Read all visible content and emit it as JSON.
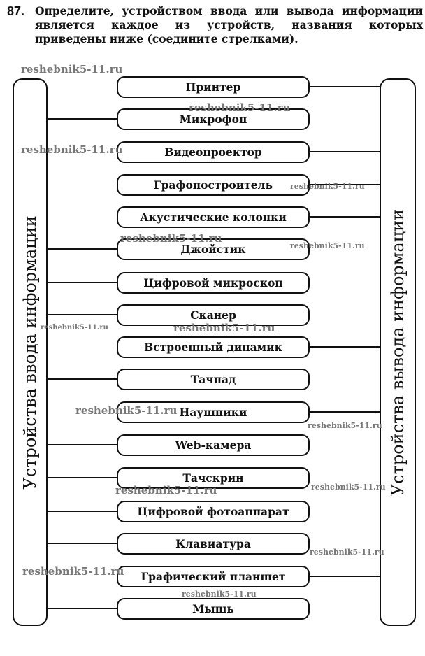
{
  "task": {
    "number": "87.",
    "text": "Определите, устройством ввода или вывода информации является каждое из устройств, названия которых приведены ниже (соедините стрелками)."
  },
  "left_panel": {
    "label": "Устройства ввода информации"
  },
  "right_panel": {
    "label": "Устройства вывода информации"
  },
  "devices": [
    {
      "label": "Принтер",
      "connected_to": "output"
    },
    {
      "label": "Микрофон",
      "connected_to": "input"
    },
    {
      "label": "Видеопроектор",
      "connected_to": "output"
    },
    {
      "label": "Графопостроитель",
      "connected_to": "output"
    },
    {
      "label": "Акустические колонки",
      "connected_to": "output"
    },
    {
      "label": "Джойстик",
      "connected_to": "input"
    },
    {
      "label": "Цифровой микроскоп",
      "connected_to": "input"
    },
    {
      "label": "Сканер",
      "connected_to": "input"
    },
    {
      "label": "Встроенный динамик",
      "connected_to": "output"
    },
    {
      "label": "Тачпад",
      "connected_to": "input"
    },
    {
      "label": "Наушники",
      "connected_to": "output"
    },
    {
      "label": "Web-камера",
      "connected_to": "input"
    },
    {
      "label": "Тачскрин",
      "connected_to": "input"
    },
    {
      "label": "Цифровой фотоаппарат",
      "connected_to": "input"
    },
    {
      "label": "Клавиатура",
      "connected_to": "input"
    },
    {
      "label": "Графический планшет",
      "connected_to": "output"
    },
    {
      "label": "Мышь",
      "connected_to": "input"
    }
  ],
  "watermark": "reshebnik5-11.ru"
}
